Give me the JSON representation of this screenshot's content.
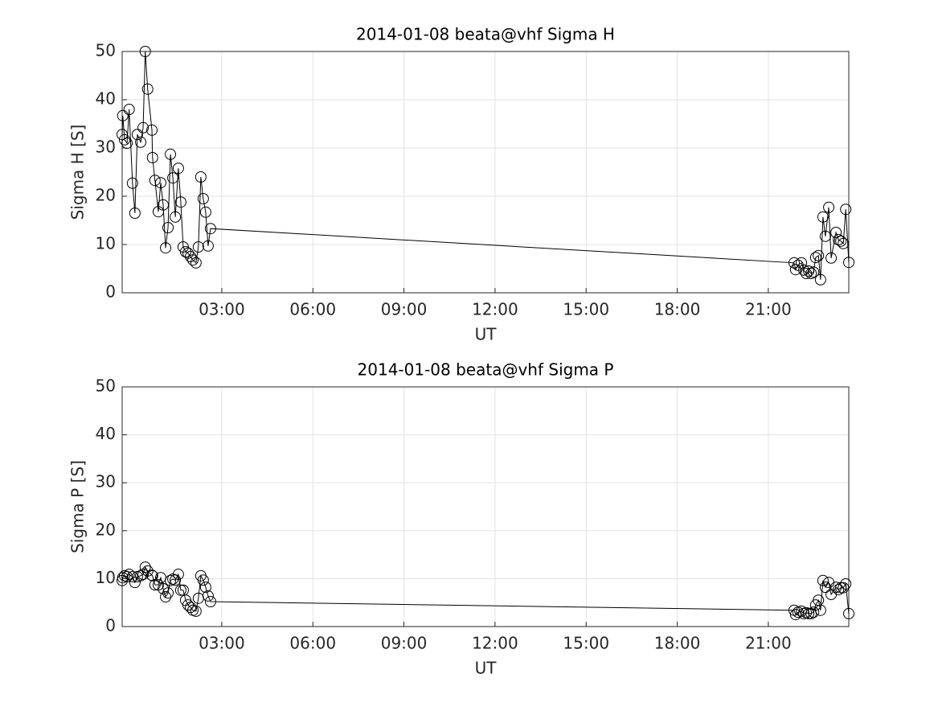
{
  "chart_data": [
    {
      "type": "line",
      "title": "2014-01-08  beata@vhf Sigma H",
      "xlabel": "UT",
      "ylabel": "Sigma H [S]",
      "xlim": [
        -0.28,
        23.65
      ],
      "ylim": [
        0,
        50
      ],
      "xticks": [
        {
          "value": 3,
          "label": "03:00"
        },
        {
          "value": 6,
          "label": "06:00"
        },
        {
          "value": 9,
          "label": "09:00"
        },
        {
          "value": 12,
          "label": "12:00"
        },
        {
          "value": 15,
          "label": "15:00"
        },
        {
          "value": 18,
          "label": "18:00"
        },
        {
          "value": 21,
          "label": "21:00"
        }
      ],
      "yticks": [
        0,
        10,
        20,
        30,
        40,
        50
      ],
      "grid": true,
      "color": "#000000",
      "marker": "circle",
      "x": [
        -0.28,
        -0.26,
        -0.2,
        -0.12,
        -0.05,
        0.06,
        0.14,
        0.22,
        0.33,
        0.41,
        0.48,
        0.56,
        0.7,
        0.72,
        0.8,
        0.91,
        0.99,
        1.07,
        1.15,
        1.23,
        1.31,
        1.39,
        1.47,
        1.57,
        1.65,
        1.73,
        1.81,
        1.89,
        1.97,
        2.05,
        2.15,
        2.23,
        2.31,
        2.39,
        2.47,
        2.55,
        2.63,
        21.85,
        21.9,
        21.98,
        22.09,
        22.17,
        22.25,
        22.33,
        22.41,
        22.49,
        22.56,
        22.65,
        22.72,
        22.8,
        22.88,
        22.99,
        23.07,
        23.23,
        23.31,
        23.39,
        23.47,
        23.55,
        23.65
      ],
      "values": [
        32.8,
        36.7,
        31.7,
        31.0,
        38.0,
        22.7,
        16.5,
        32.8,
        31.2,
        34.2,
        50.0,
        42.2,
        33.7,
        28.0,
        23.3,
        16.8,
        22.8,
        18.2,
        9.3,
        13.5,
        28.7,
        23.8,
        15.7,
        25.8,
        18.8,
        9.5,
        8.5,
        8.2,
        7.5,
        6.8,
        6.2,
        9.5,
        24.0,
        19.5,
        16.7,
        9.7,
        13.3,
        6.2,
        4.8,
        5.7,
        6.2,
        4.7,
        4.0,
        4.5,
        4.0,
        4.3,
        7.3,
        7.7,
        2.7,
        15.7,
        11.7,
        17.7,
        7.2,
        12.5,
        11.0,
        10.7,
        10.2,
        17.3,
        6.3
      ]
    },
    {
      "type": "line",
      "title": "2014-01-08  beata@vhf Sigma P",
      "xlabel": "UT",
      "ylabel": "Sigma P [S]",
      "xlim": [
        -0.28,
        23.65
      ],
      "ylim": [
        0,
        50
      ],
      "xticks": [
        {
          "value": 3,
          "label": "03:00"
        },
        {
          "value": 6,
          "label": "06:00"
        },
        {
          "value": 9,
          "label": "09:00"
        },
        {
          "value": 12,
          "label": "12:00"
        },
        {
          "value": 15,
          "label": "15:00"
        },
        {
          "value": 18,
          "label": "18:00"
        },
        {
          "value": 21,
          "label": "21:00"
        }
      ],
      "yticks": [
        0,
        10,
        20,
        30,
        40,
        50
      ],
      "grid": true,
      "color": "#000000",
      "marker": "circle",
      "x": [
        -0.28,
        -0.26,
        -0.2,
        -0.12,
        -0.05,
        0.06,
        0.14,
        0.22,
        0.33,
        0.41,
        0.48,
        0.56,
        0.7,
        0.72,
        0.8,
        0.91,
        0.99,
        1.07,
        1.15,
        1.23,
        1.31,
        1.39,
        1.47,
        1.57,
        1.65,
        1.73,
        1.81,
        1.89,
        1.97,
        2.05,
        2.15,
        2.23,
        2.31,
        2.39,
        2.47,
        2.55,
        2.63,
        21.85,
        21.9,
        21.98,
        22.09,
        22.17,
        22.25,
        22.33,
        22.41,
        22.49,
        22.56,
        22.65,
        22.72,
        22.8,
        22.88,
        22.99,
        23.07,
        23.23,
        23.31,
        23.39,
        23.47,
        23.55,
        23.65
      ],
      "values": [
        9.6,
        10.2,
        10.6,
        10.4,
        10.9,
        10.4,
        9.2,
        10.4,
        10.6,
        10.9,
        12.4,
        11.6,
        10.7,
        10.6,
        8.7,
        8.7,
        10.2,
        7.9,
        6.2,
        7.0,
        9.6,
        9.9,
        9.7,
        10.9,
        7.6,
        7.6,
        5.5,
        4.5,
        4.0,
        3.4,
        3.2,
        5.9,
        10.6,
        9.7,
        8.2,
        6.4,
        5.2,
        3.4,
        2.5,
        3.0,
        3.2,
        2.7,
        2.9,
        2.7,
        2.7,
        3.0,
        4.5,
        5.5,
        3.4,
        9.6,
        8.2,
        9.2,
        6.7,
        8.2,
        7.7,
        8.1,
        8.1,
        8.9,
        2.7
      ]
    }
  ]
}
